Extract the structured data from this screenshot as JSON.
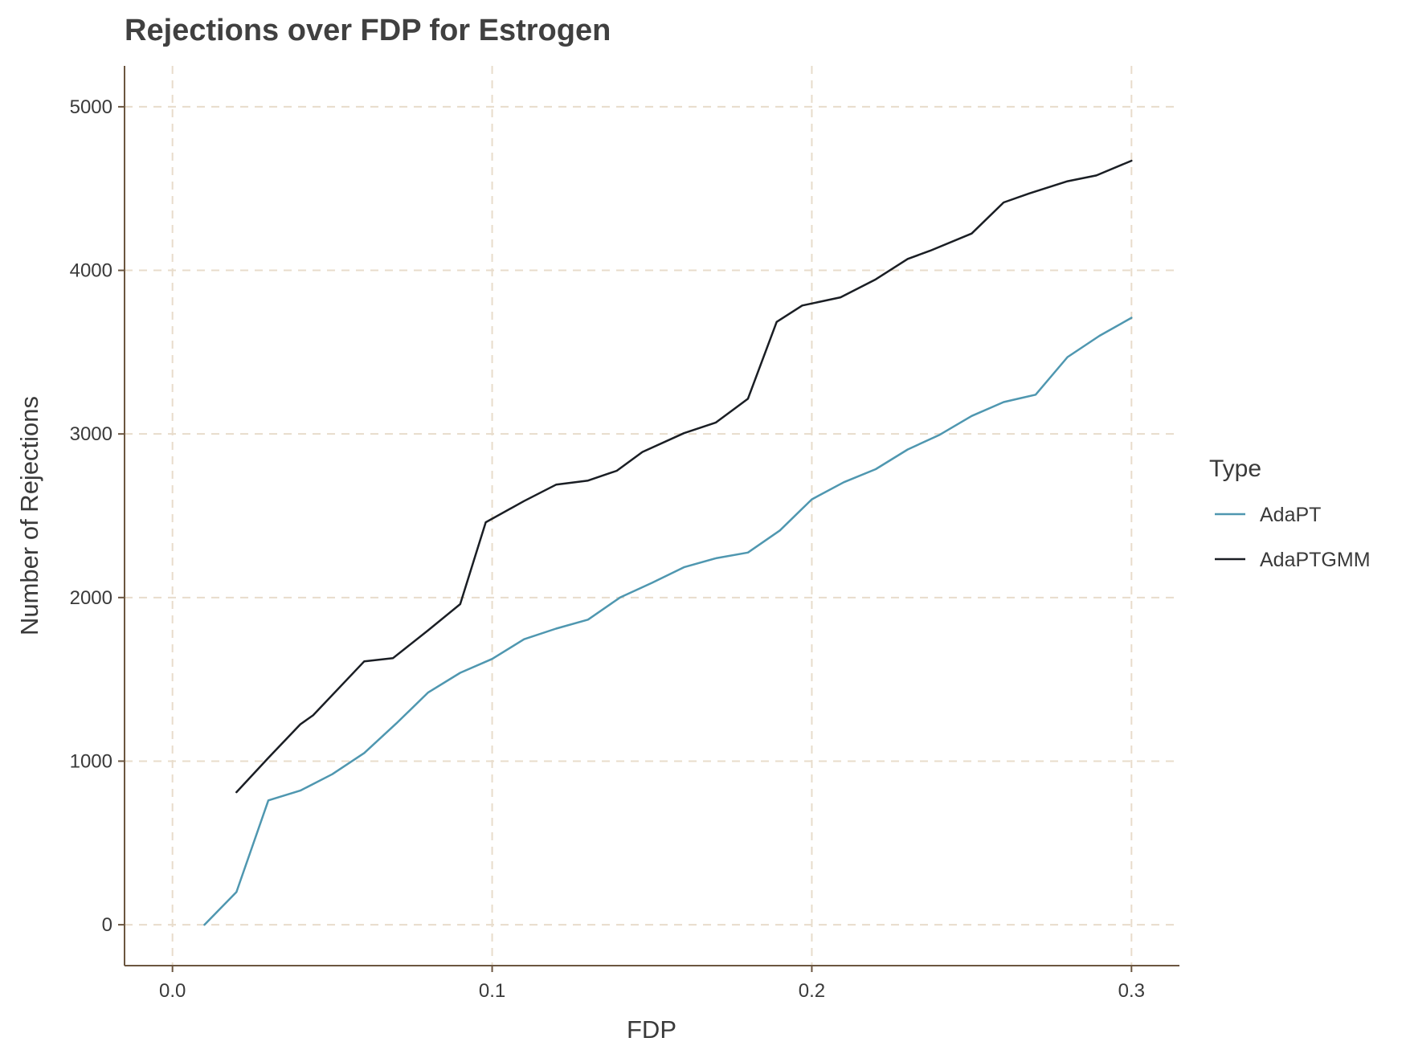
{
  "chart_data": {
    "type": "line",
    "title": "Rejections over FDP for Estrogen",
    "xlabel": "FDP",
    "ylabel": "Number of Rejections",
    "xlim": [
      -0.015,
      0.315
    ],
    "ylim": [
      -250,
      5250
    ],
    "xticks": [
      0.0,
      0.1,
      0.2,
      0.3
    ],
    "xtick_labels": [
      "0.0",
      "0.1",
      "0.2",
      "0.3"
    ],
    "yticks": [
      0,
      1000,
      2000,
      3000,
      4000,
      5000
    ],
    "ytick_labels": [
      "0",
      "1000",
      "2000",
      "3000",
      "4000",
      "5000"
    ],
    "grid": true,
    "legend": {
      "title": "Type",
      "position": "right"
    },
    "series": [
      {
        "name": "AdaPT",
        "color": "#4f97b0",
        "x": [
          0.01,
          0.02,
          0.03,
          0.04,
          0.05,
          0.06,
          0.07,
          0.08,
          0.09,
          0.1,
          0.11,
          0.12,
          0.13,
          0.14,
          0.15,
          0.16,
          0.17,
          0.18,
          0.19,
          0.2,
          0.21,
          0.22,
          0.23,
          0.24,
          0.25,
          0.26,
          0.27,
          0.28,
          0.29,
          0.3
        ],
        "y": [
          0,
          200,
          760,
          820,
          920,
          1050,
          1230,
          1420,
          1540,
          1625,
          1745,
          1810,
          1865,
          2000,
          2090,
          2185,
          2240,
          2275,
          2410,
          2600,
          2705,
          2785,
          2905,
          2995,
          3110,
          3195,
          3240,
          3470,
          3600,
          3710
        ]
      },
      {
        "name": "AdaPTGMM",
        "color": "#1a1e24",
        "x": [
          0.02,
          0.03,
          0.04,
          0.044,
          0.06,
          0.069,
          0.08,
          0.09,
          0.098,
          0.11,
          0.12,
          0.13,
          0.139,
          0.147,
          0.16,
          0.17,
          0.18,
          0.189,
          0.197,
          0.209,
          0.22,
          0.23,
          0.237,
          0.25,
          0.26,
          0.268,
          0.28,
          0.289,
          0.3
        ],
        "y": [
          810,
          1020,
          1225,
          1280,
          1610,
          1630,
          1800,
          1960,
          2460,
          2590,
          2690,
          2715,
          2775,
          2890,
          3005,
          3070,
          3215,
          3685,
          3785,
          3835,
          3945,
          4070,
          4120,
          4225,
          4415,
          4470,
          4545,
          4580,
          4670
        ]
      }
    ]
  }
}
